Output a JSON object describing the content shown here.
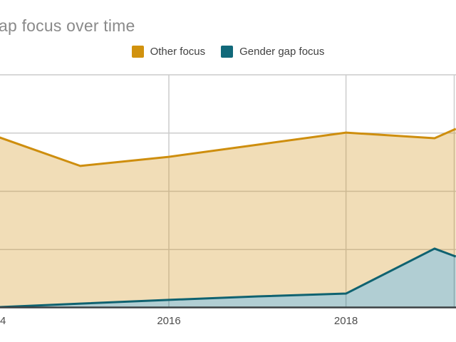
{
  "title": "ap focus over time",
  "legend": {
    "items": [
      {
        "label": "Other focus",
        "color": "#D1920E"
      },
      {
        "label": "Gender gap focus",
        "color": "#11697A"
      }
    ]
  },
  "axis": {
    "x_tick_labels": [
      "4",
      "2016",
      "2018"
    ]
  },
  "colors": {
    "other_line": "#CE8E0E",
    "other_fill": "rgba(207,142,15,0.30)",
    "gender_line": "#0F6270",
    "gender_fill": "rgba(17,105,122,0.33)",
    "gridline": "#CCCCCC",
    "baseline": "#3C4043",
    "title_text": "#8A8A8A",
    "legend_text": "#424242",
    "axis_text": "#4D4D4D"
  },
  "chart_data": {
    "type": "area",
    "stacked": true,
    "title": "ap focus over time",
    "title_note": "title cropped at left edge of screenshot; full title likely 'Gender gap focus over time'",
    "x_years": [
      2014.09,
      2015,
      2016,
      2017,
      2018,
      2019,
      2019.24
    ],
    "x_note": "first and last x values are the visible crop edges; '2014' tick label is cropped to '4'; y-axis labels are cropped off the left edge",
    "series": [
      {
        "name": "Other focus",
        "values_pct": [
          73.1,
          60.9,
          64.8,
          70.0,
          75.2,
          72.8,
          76.8
        ]
      },
      {
        "name": "Gender gap focus",
        "values_pct": [
          0.3,
          1.8,
          3.4,
          4.9,
          6.1,
          25.4,
          22.0
        ]
      }
    ],
    "ylim": [
      0,
      100
    ],
    "y_gridlines_pct": [
      0,
      25,
      50,
      75,
      100
    ],
    "x_tick_years": [
      2014,
      2016,
      2018
    ],
    "legend_position": "top",
    "grid": true
  }
}
